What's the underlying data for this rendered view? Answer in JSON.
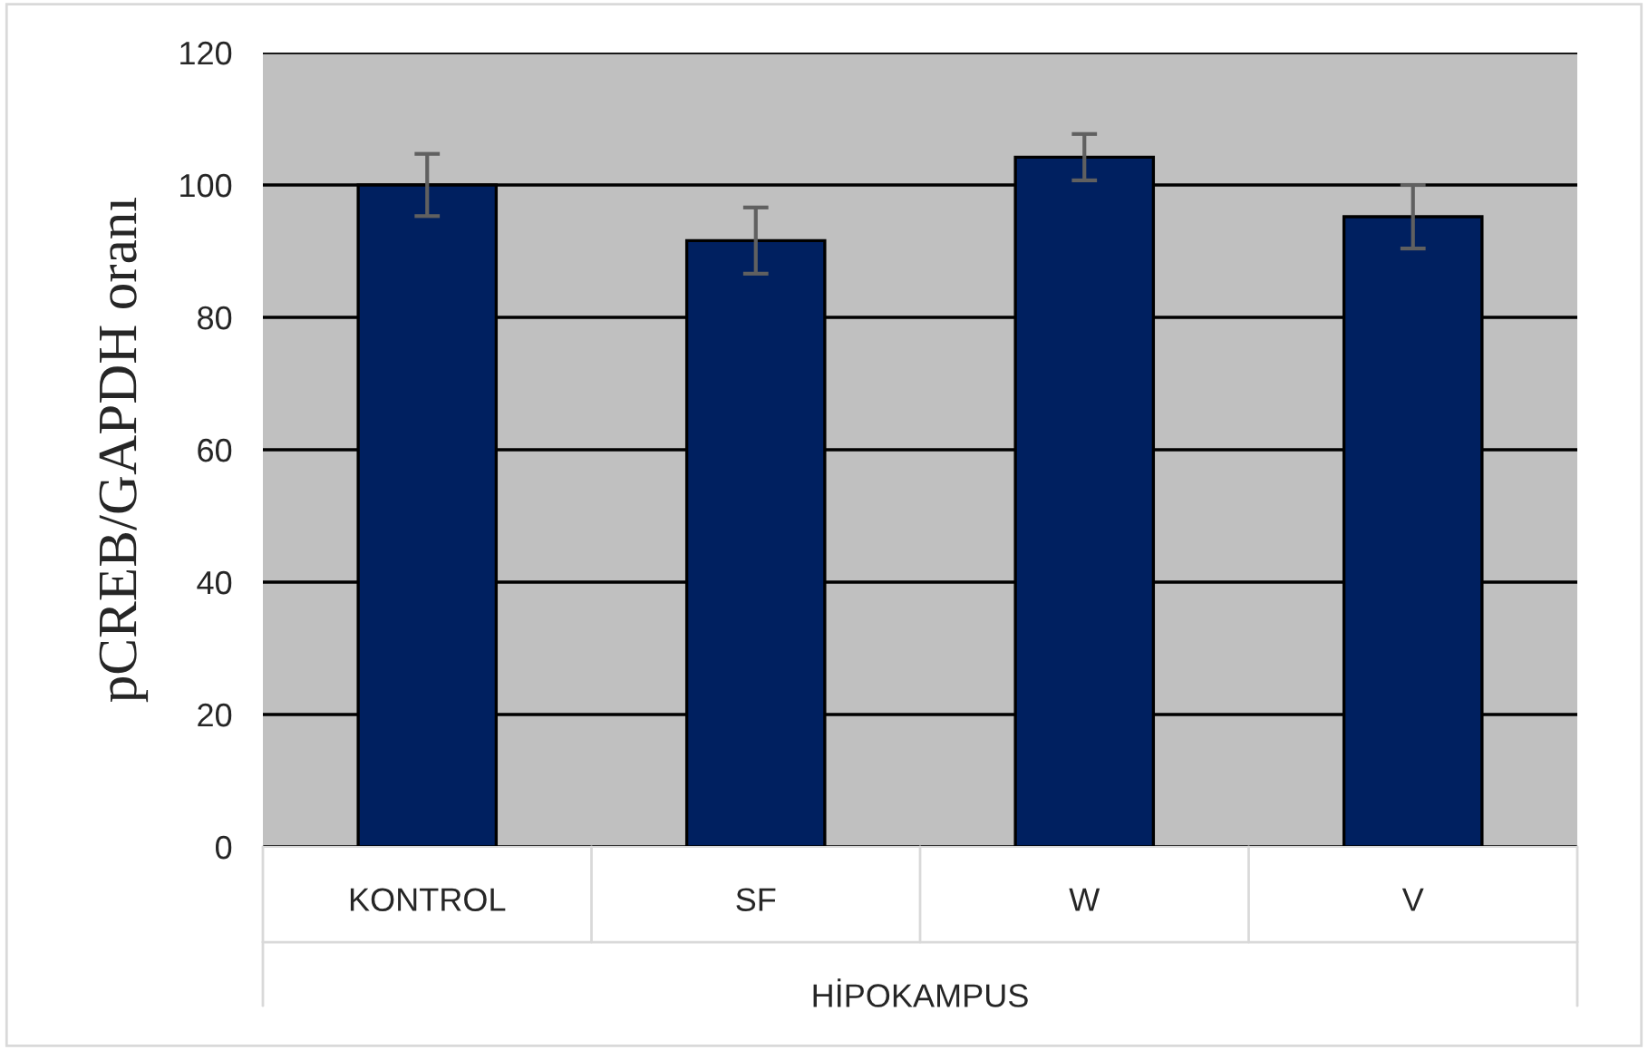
{
  "chart_data": {
    "type": "bar",
    "ylabel": "pCREB/GAPDH oranı",
    "xlabel": "HİPOKAMPUS",
    "categories": [
      "KONTROL",
      "SF",
      "W",
      "V"
    ],
    "values": [
      100,
      91.6,
      104.2,
      95.2
    ],
    "errors": [
      4.7,
      5,
      3.5,
      4.8
    ],
    "color": "#002060",
    "ylim": [
      0,
      120
    ],
    "yticks": [
      0,
      20,
      40,
      60,
      80,
      100,
      120
    ],
    "grid": "y"
  }
}
